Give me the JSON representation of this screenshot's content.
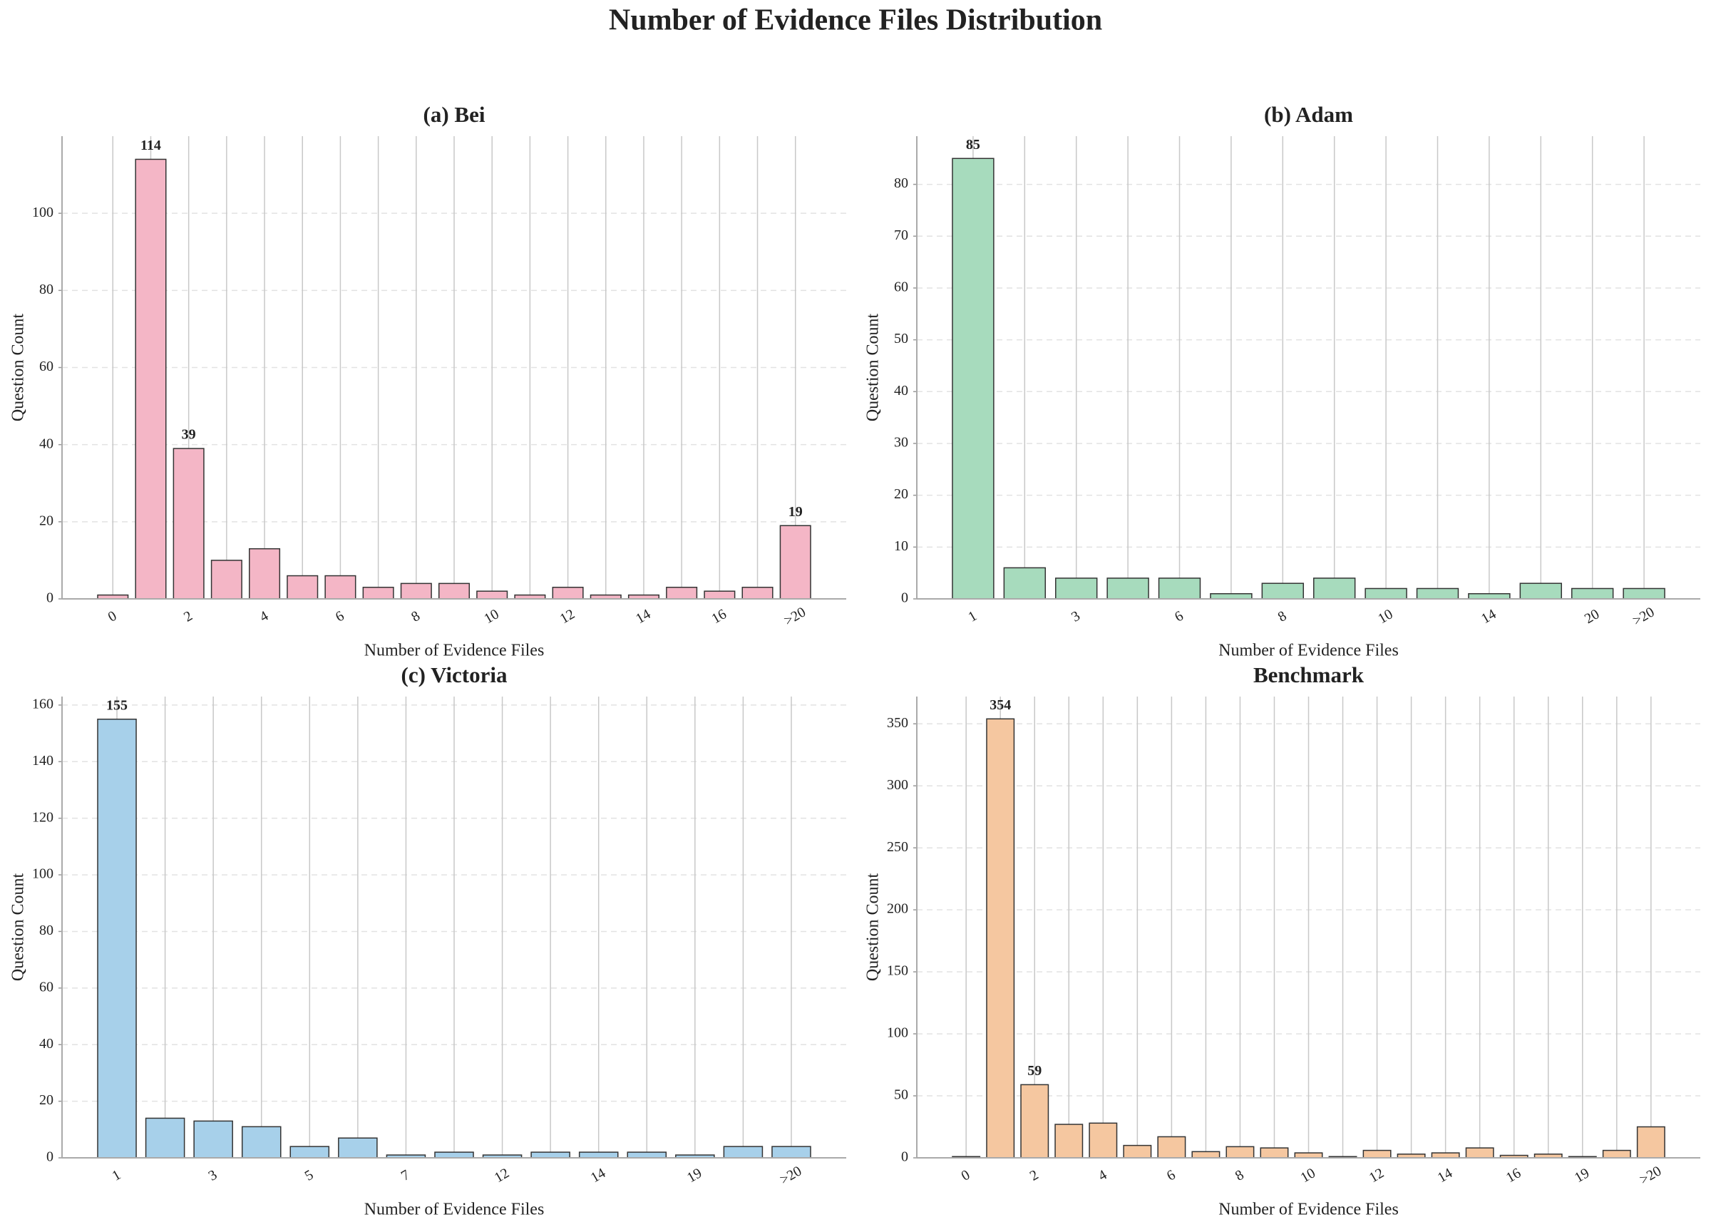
{
  "title": "Number of Evidence Files Distribution",
  "chart_data": [
    {
      "type": "bar",
      "title": "(a) Bei",
      "x_label": "Number of Evidence Files",
      "y_label": "Question Count",
      "color": "#f4b6c6",
      "categories": [
        "0",
        null,
        "2",
        null,
        "4",
        null,
        "6",
        null,
        "8",
        null,
        "10",
        null,
        "12",
        null,
        "14",
        null,
        "16",
        null,
        ">20"
      ],
      "values": [
        1,
        114,
        39,
        10,
        13,
        6,
        6,
        3,
        4,
        4,
        2,
        1,
        3,
        1,
        1,
        3,
        2,
        3,
        19
      ],
      "value_labels": [
        null,
        "114",
        "39",
        null,
        null,
        null,
        null,
        null,
        null,
        null,
        null,
        null,
        null,
        null,
        null,
        null,
        null,
        null,
        "19"
      ],
      "ylim": [
        0,
        120
      ],
      "yticks": [
        0,
        20,
        40,
        60,
        80,
        100
      ],
      "grid": true
    },
    {
      "type": "bar",
      "title": "(b) Adam",
      "x_label": "Number of Evidence Files",
      "y_label": "Question Count",
      "color": "#a7dbbd",
      "categories": [
        "1",
        null,
        "3",
        null,
        "6",
        null,
        "8",
        null,
        "10",
        null,
        "14",
        null,
        "20",
        ">20"
      ],
      "values": [
        85,
        6,
        4,
        4,
        4,
        1,
        3,
        4,
        2,
        2,
        1,
        3,
        2,
        2
      ],
      "value_labels": [
        "85",
        null,
        null,
        null,
        null,
        null,
        null,
        null,
        null,
        null,
        null,
        null,
        null,
        null
      ],
      "ylim": [
        0,
        89.3
      ],
      "yticks": [
        0,
        10,
        20,
        30,
        40,
        50,
        60,
        70,
        80
      ],
      "grid": true
    },
    {
      "type": "bar",
      "title": "(c) Victoria",
      "x_label": "Number of Evidence Files",
      "y_label": "Question Count",
      "color": "#a7d0ea",
      "categories": [
        "1",
        null,
        "3",
        null,
        "5",
        null,
        "7",
        null,
        "12",
        null,
        "14",
        null,
        "19",
        null,
        ">20"
      ],
      "values": [
        155,
        14,
        13,
        11,
        4,
        7,
        1,
        2,
        1,
        2,
        2,
        2,
        1,
        4,
        4
      ],
      "value_labels": [
        "155",
        null,
        null,
        null,
        null,
        null,
        null,
        null,
        null,
        null,
        null,
        null,
        null,
        null,
        null
      ],
      "ylim": [
        0,
        163
      ],
      "yticks": [
        0,
        20,
        40,
        60,
        80,
        100,
        120,
        140,
        160
      ],
      "grid": true
    },
    {
      "type": "bar",
      "title": "Benchmark",
      "x_label": "Number of Evidence Files",
      "y_label": "Question Count",
      "color": "#f5c7a0",
      "categories": [
        "0",
        null,
        "2",
        null,
        "4",
        null,
        "6",
        null,
        "8",
        null,
        "10",
        null,
        "12",
        null,
        "14",
        null,
        "16",
        null,
        "19",
        null,
        ">20"
      ],
      "values": [
        1,
        354,
        59,
        27,
        28,
        10,
        17,
        5,
        9,
        8,
        4,
        1,
        6,
        3,
        4,
        8,
        2,
        3,
        1,
        6,
        25
      ],
      "value_labels": [
        null,
        "354",
        "59",
        null,
        null,
        null,
        null,
        null,
        null,
        null,
        null,
        null,
        null,
        null,
        null,
        null,
        null,
        null,
        null,
        null,
        null
      ],
      "ylim": [
        0,
        372
      ],
      "yticks": [
        0,
        50,
        100,
        150,
        200,
        250,
        300,
        350
      ],
      "grid": true
    }
  ]
}
